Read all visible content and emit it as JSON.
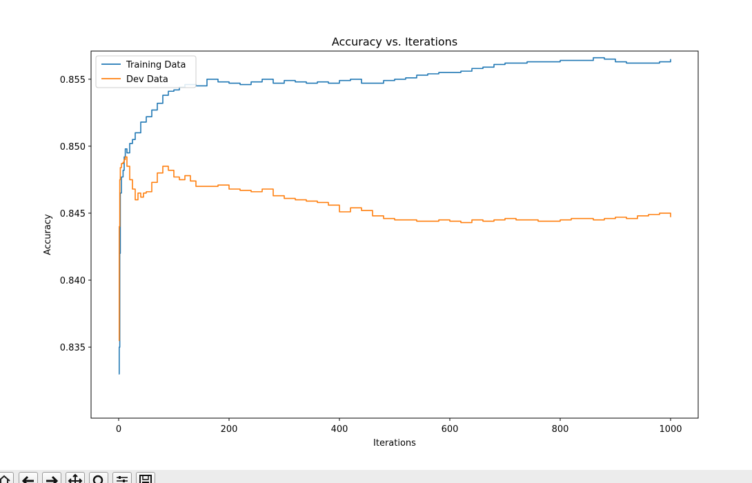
{
  "chart_data": {
    "type": "line",
    "title": "Accuracy vs. Iterations",
    "xlabel": "Iterations",
    "ylabel": "Accuracy",
    "xlim": [
      -50,
      1050
    ],
    "ylim": [
      0.8297,
      0.8571
    ],
    "xticks": [
      0,
      200,
      400,
      600,
      800,
      1000
    ],
    "xtick_labels": [
      "0",
      "200",
      "400",
      "600",
      "800",
      "1000"
    ],
    "yticks": [
      0.835,
      0.84,
      0.845,
      0.85,
      0.855
    ],
    "ytick_labels": [
      "0.835",
      "0.840",
      "0.845",
      "0.850",
      "0.855"
    ],
    "grid": false,
    "legend": "upper-left",
    "series": [
      {
        "name": "Training Data",
        "color": "#1f77b4",
        "x": [
          0,
          1,
          2,
          3,
          5,
          8,
          10,
          12,
          15,
          20,
          25,
          30,
          40,
          50,
          60,
          70,
          80,
          90,
          100,
          110,
          120,
          140,
          160,
          180,
          200,
          220,
          240,
          260,
          280,
          300,
          320,
          340,
          360,
          380,
          400,
          420,
          440,
          460,
          480,
          500,
          520,
          540,
          560,
          580,
          600,
          620,
          640,
          660,
          680,
          700,
          720,
          740,
          760,
          780,
          800,
          820,
          840,
          860,
          880,
          900,
          920,
          940,
          960,
          980,
          1000
        ],
        "y": [
          0.833,
          0.835,
          0.842,
          0.8465,
          0.8477,
          0.8482,
          0.8492,
          0.8498,
          0.8495,
          0.8502,
          0.8505,
          0.851,
          0.8518,
          0.8522,
          0.8527,
          0.8532,
          0.8538,
          0.8541,
          0.8542,
          0.8544,
          0.8546,
          0.8545,
          0.855,
          0.8548,
          0.8547,
          0.8546,
          0.8548,
          0.855,
          0.8547,
          0.8549,
          0.8548,
          0.8547,
          0.8548,
          0.8547,
          0.8549,
          0.855,
          0.8547,
          0.8547,
          0.8549,
          0.855,
          0.8551,
          0.8553,
          0.8554,
          0.8555,
          0.8555,
          0.8556,
          0.8558,
          0.8559,
          0.8561,
          0.8562,
          0.8562,
          0.8563,
          0.8563,
          0.8563,
          0.8564,
          0.8564,
          0.8564,
          0.8566,
          0.8565,
          0.8563,
          0.8562,
          0.8562,
          0.8562,
          0.8563,
          0.8565
        ]
      },
      {
        "name": "Dev Data",
        "color": "#ff7f0e",
        "x": [
          0,
          1,
          2,
          3,
          5,
          8,
          10,
          12,
          15,
          20,
          25,
          30,
          35,
          40,
          45,
          50,
          60,
          70,
          80,
          90,
          100,
          110,
          120,
          130,
          140,
          160,
          180,
          200,
          220,
          240,
          260,
          280,
          300,
          320,
          340,
          360,
          380,
          400,
          420,
          440,
          460,
          480,
          500,
          520,
          540,
          560,
          580,
          600,
          620,
          640,
          660,
          680,
          700,
          720,
          740,
          760,
          780,
          800,
          820,
          840,
          860,
          880,
          900,
          920,
          940,
          960,
          980,
          1000
        ],
        "y": [
          0.8355,
          0.844,
          0.8475,
          0.8484,
          0.8487,
          0.8488,
          0.849,
          0.8492,
          0.8485,
          0.8475,
          0.8468,
          0.846,
          0.8465,
          0.8462,
          0.8465,
          0.8466,
          0.8473,
          0.848,
          0.8485,
          0.8482,
          0.8477,
          0.8475,
          0.8478,
          0.8474,
          0.847,
          0.847,
          0.8471,
          0.8468,
          0.8467,
          0.8466,
          0.8468,
          0.8463,
          0.8461,
          0.846,
          0.8459,
          0.8458,
          0.8456,
          0.8451,
          0.8454,
          0.8452,
          0.8448,
          0.8446,
          0.8445,
          0.8445,
          0.8444,
          0.8444,
          0.8445,
          0.8444,
          0.8443,
          0.8445,
          0.8444,
          0.8445,
          0.8446,
          0.8445,
          0.8445,
          0.8444,
          0.8444,
          0.8445,
          0.8446,
          0.8446,
          0.8445,
          0.8446,
          0.8447,
          0.8446,
          0.8448,
          0.8449,
          0.845,
          0.8447
        ]
      }
    ]
  },
  "toolbar": {
    "buttons": [
      {
        "name": "home-icon"
      },
      {
        "name": "back-arrow-icon"
      },
      {
        "name": "forward-arrow-icon"
      },
      {
        "name": "pan-icon"
      },
      {
        "name": "zoom-icon"
      },
      {
        "name": "subplots-icon"
      },
      {
        "name": "save-icon"
      }
    ]
  }
}
